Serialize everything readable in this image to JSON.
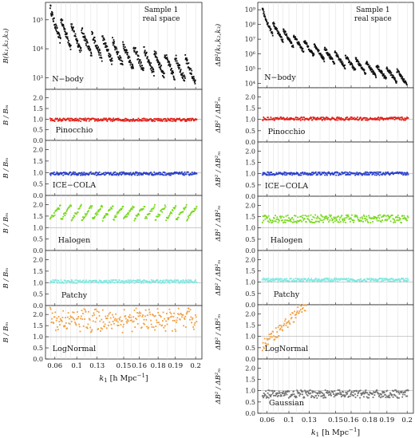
{
  "chart_data": [
    {
      "type": "scatter",
      "column": "left",
      "top_label": [
        "Sample 1",
        "real space"
      ],
      "xlabel_main": "k",
      "xlabel_sub": "1",
      "xlabel_unit": "[h Mpc",
      "xlabel_exp": "−1",
      "xlabel_close": "]",
      "xticks": [
        "0.06",
        "0.1",
        "0.13",
        "0.15",
        "0.16",
        "0.18",
        "0.19",
        "0.2"
      ],
      "panels": [
        {
          "label": "N−body",
          "ylabel": "B(k₁,k₂,k₃)",
          "log": true,
          "yticks": [
            "10³",
            "10⁴",
            "10⁵"
          ],
          "color": "#111111",
          "level": [
            3.2,
            5.1
          ]
        },
        {
          "label": "Pinocchio",
          "ylabel": "B / Bₘ",
          "yticks": [
            "0.0",
            "0.5",
            "1.0",
            "1.5",
            "2.0"
          ],
          "ylim": [
            0,
            2.4
          ],
          "color": "#e02018",
          "level": 0.97
        },
        {
          "label": "ICE−COLA",
          "ylabel": "B / Bₘ",
          "yticks": [
            "0.0",
            "0.5",
            "1.0",
            "1.5",
            "2.0"
          ],
          "ylim": [
            0,
            2.4
          ],
          "color": "#2a40c8",
          "level": 0.95
        },
        {
          "label": "Halogen",
          "ylabel": "B / Bₘ",
          "yticks": [
            "0.0",
            "0.5",
            "1.0",
            "1.5",
            "2.0"
          ],
          "ylim": [
            0,
            2.4
          ],
          "color": "#78d81c",
          "level": 1.55
        },
        {
          "label": "Patchy",
          "ylabel": "B / Bₘ",
          "yticks": [
            "0.0",
            "0.5",
            "1.0",
            "1.5",
            "2.0"
          ],
          "ylim": [
            0,
            2.4
          ],
          "color": "#80e8e0",
          "level": 1.05
        },
        {
          "label": "LogNormal",
          "ylabel": "B / Bₘ",
          "yticks": [
            "0.0",
            "0.5",
            "1.0",
            "1.5",
            "2.0"
          ],
          "ylim": [
            0,
            2.4
          ],
          "color": "#f0a040",
          "level": 1.9
        }
      ]
    },
    {
      "type": "scatter",
      "column": "right",
      "top_label": [
        "Sample 1",
        "real space"
      ],
      "xlabel_main": "k",
      "xlabel_sub": "1",
      "xlabel_unit": "[h Mpc",
      "xlabel_exp": "−1",
      "xlabel_close": "]",
      "xticks": [
        "0.06",
        "0.1",
        "0.13",
        "0.15",
        "0.16",
        "0.18",
        "0.19",
        "0.2"
      ],
      "panels": [
        {
          "label": "N−body",
          "ylabel": "ΔB²(k₁,k₂,k₃)",
          "log": true,
          "yticks": [
            "10⁴",
            "10⁵",
            "10⁶",
            "10⁷",
            "10⁸",
            "10⁹"
          ],
          "color": "#111111",
          "level": [
            4.3,
            8.8
          ]
        },
        {
          "label": "Pinocchio",
          "ylabel": "ΔB² / ΔB²ₘ",
          "yticks": [
            "0.0",
            "0.5",
            "1.0",
            "1.5",
            "2.0"
          ],
          "ylim": [
            0,
            2.4
          ],
          "color": "#e02018",
          "level": 1.03
        },
        {
          "label": "ICE−COLA",
          "ylabel": "ΔB² / ΔB²ₘ",
          "yticks": [
            "0.0",
            "0.5",
            "1.0",
            "1.5",
            "2.0"
          ],
          "ylim": [
            0,
            2.4
          ],
          "color": "#2a40c8",
          "level": 1.0
        },
        {
          "label": "Halogen",
          "ylabel": "ΔB² / ΔB²ₘ",
          "yticks": [
            "0.0",
            "0.5",
            "1.0",
            "1.5",
            "2.0"
          ],
          "ylim": [
            0,
            2.4
          ],
          "color": "#78d81c",
          "level": 1.4
        },
        {
          "label": "Patchy",
          "ylabel": "ΔB² / ΔB²ₘ",
          "yticks": [
            "0.0",
            "0.5",
            "1.0",
            "1.5",
            "2.0"
          ],
          "ylim": [
            0,
            2.4
          ],
          "color": "#80e8e0",
          "level": 1.1
        },
        {
          "label": "LogNormal",
          "ylabel": "ΔB² / ΔB²ₘ",
          "yticks": [
            "0.0",
            "0.5",
            "1.0",
            "1.5",
            "2.0"
          ],
          "ylim": [
            0,
            2.4
          ],
          "color": "#f0a040",
          "level": 2.0
        },
        {
          "label": "Gaussian",
          "ylabel": "ΔB² / ΔB²ₘ",
          "yticks": [
            "0.0",
            "0.5",
            "1.0",
            "1.5",
            "2.0"
          ],
          "ylim": [
            0,
            2.4
          ],
          "color": "#707070",
          "level": 0.85
        }
      ]
    }
  ]
}
